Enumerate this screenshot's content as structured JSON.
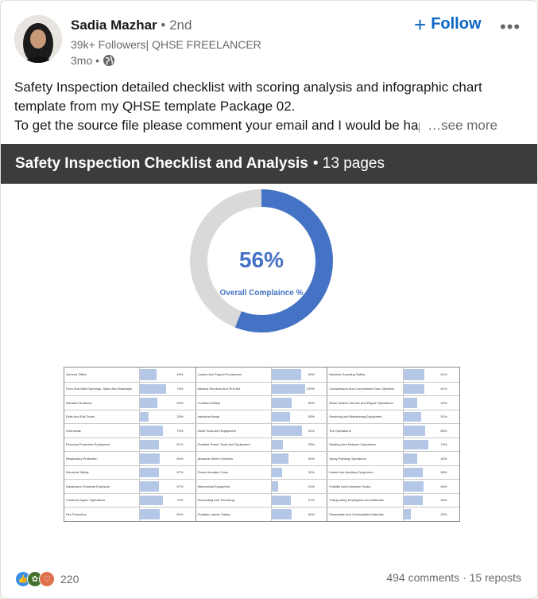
{
  "author": {
    "name": "Sadia Mazhar",
    "degree": "• 2nd",
    "headline": "39k+ Followers| QHSE FREELANCER",
    "time": "3mo •"
  },
  "actions": {
    "follow": "Follow",
    "more": "•••"
  },
  "post": {
    "line1": "Safety Inspection detailed checklist with scoring analysis and infographic chart",
    "line2": "template from my QHSE template Package 02.",
    "line3": "To get the source file please comment your email and I would be hap",
    "see_more": "…see more"
  },
  "document": {
    "title": "Safety Inspection Checklist and Analysis",
    "pages": "• 13 pages",
    "donut_percent": "56%",
    "donut_label": "Overall Complaince %",
    "compliance_fraction": 0.56,
    "colors": {
      "filled": "#4472c4",
      "empty": "#d9d9d9",
      "bar": "#b4c7e7"
    },
    "table": [
      [
        [
          "General Office",
          "49%",
          0.49
        ],
        [
          "Locked And Tagout Procedures",
          "90%",
          0.9
        ],
        [
          "Machine Guarding Safety",
          "61%",
          0.61
        ]
      ],
      [
        [
          "Floor And Wall Openings, Stairs And Stairways",
          "78%",
          0.78
        ],
        [
          "Medical Services And First Aid",
          "100%",
          1.0
        ],
        [
          "Compressors And Compressed Gas Cylinders",
          "61%",
          0.61
        ]
      ],
      [
        [
          "Elevated Surfaces",
          "53%",
          0.53
        ],
        [
          "Confined Safety",
          "60%",
          0.6
        ],
        [
          "Motor Vehicle Service And Repair Operations",
          "40%",
          0.4
        ]
      ],
      [
        [
          "Exits And Exit Doors",
          "25%",
          0.25
        ],
        [
          "Industrial Areas",
          "55%",
          0.55
        ],
        [
          "Servicing And Maintaining Equipment",
          "51%",
          0.51
        ]
      ],
      [
        [
          "Chemicals",
          "70%",
          0.7
        ],
        [
          "Hand Tools And Equipment",
          "91%",
          0.91
        ],
        [
          "Tire Operations",
          "65%",
          0.65
        ]
      ],
      [
        [
          "Personal Protective Equipment",
          "57%",
          0.57
        ],
        [
          "Portable Power Tools And Equipment",
          "33%",
          0.33
        ],
        [
          "Welding And Network Operations",
          "74%",
          0.74
        ]
      ],
      [
        [
          "Respiratory Protection",
          "60%",
          0.6
        ],
        [
          "Abrasive Wheel Grinders",
          "50%",
          0.5
        ],
        [
          "Spray Painting Operations",
          "40%",
          0.4
        ]
      ],
      [
        [
          "Electrical Safety",
          "57%",
          0.57
        ],
        [
          "Power Actuated Tools",
          "32%",
          0.32
        ],
        [
          "Hoists And Auxiliary Equipment",
          "56%",
          0.56
        ]
      ],
      [
        [
          "Hazardous Chemical Exposure",
          "57%",
          0.57
        ],
        [
          "Mechanical Equipment",
          "20%",
          0.2
        ],
        [
          "Forklifts And Industrial Trucks",
          "60%",
          0.6
        ]
      ],
      [
        [
          "Confined Space Operations",
          "70%",
          0.7
        ],
        [
          "Excavating And Trenching",
          "57%",
          0.57
        ],
        [
          "Transporting Employees And Materials",
          "56%",
          0.56
        ]
      ],
      [
        [
          "Fire Protection",
          "60%",
          0.6
        ],
        [
          "Portable Ladder Safety",
          "60%",
          0.6
        ],
        [
          "Flammable And Combustible Materials",
          "20%",
          0.2
        ]
      ]
    ]
  },
  "social": {
    "reaction_count": "220",
    "comments": "494 comments",
    "separator": "·",
    "reposts": "15 reposts"
  }
}
